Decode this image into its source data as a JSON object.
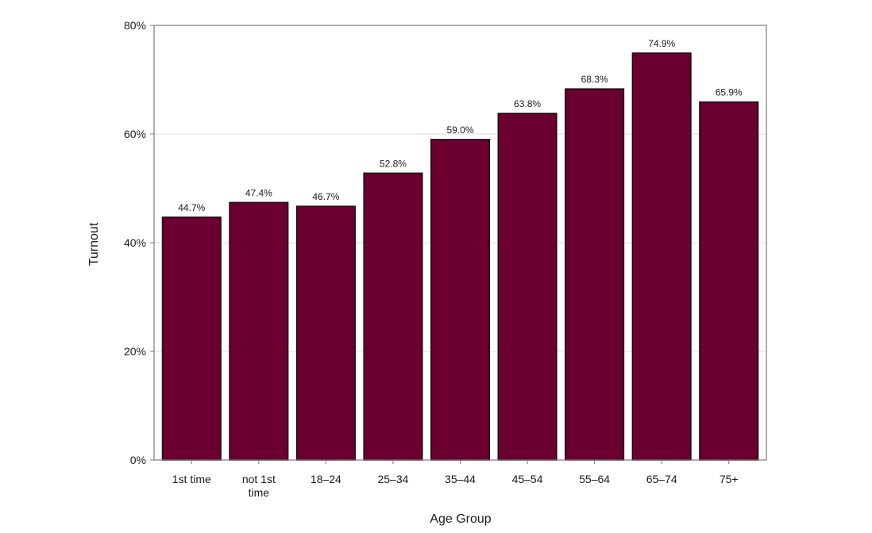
{
  "chart_data": {
    "type": "bar",
    "categories": [
      "1st time",
      "not 1st time",
      "18–24",
      "25–34",
      "35–44",
      "45–54",
      "55–64",
      "65–74",
      "75+"
    ],
    "category_lines": [
      [
        "1st time"
      ],
      [
        "not 1st",
        "time"
      ],
      [
        "18–24"
      ],
      [
        "25–34"
      ],
      [
        "35–44"
      ],
      [
        "45–54"
      ],
      [
        "55–64"
      ],
      [
        "65–74"
      ],
      [
        "75+"
      ]
    ],
    "values": [
      44.7,
      47.4,
      46.7,
      52.8,
      59.0,
      63.8,
      68.3,
      74.9,
      65.9
    ],
    "data_labels": [
      "44.7%",
      "47.4%",
      "46.7%",
      "52.8%",
      "59.0%",
      "63.8%",
      "68.3%",
      "74.9%",
      "65.9%"
    ],
    "title": "",
    "xlabel": "Age Group",
    "ylabel": "Turnout",
    "ylim": [
      0,
      80
    ],
    "yticks": [
      0,
      20,
      40,
      60,
      80
    ],
    "ytick_labels": [
      "0%",
      "20%",
      "40%",
      "60%",
      "80%"
    ],
    "grid": true,
    "colors": {
      "bar_fill": "#6b0030",
      "bar_stroke": "#1a0a10",
      "grid": "#dcdcdc",
      "frame": "#7a7a7a"
    }
  }
}
